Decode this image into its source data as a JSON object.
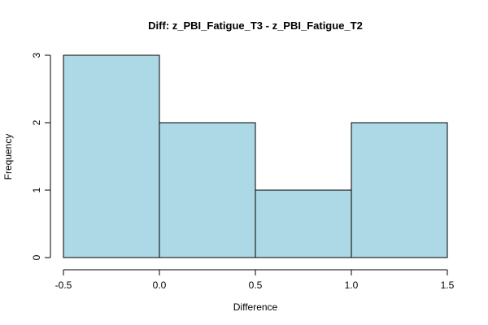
{
  "chart_data": {
    "type": "bar",
    "title": "Diff: z_PBI_Fatigue_T3 - z_PBI_Fatigue_T2",
    "xlabel": "Difference",
    "ylabel": "Frequency",
    "bins": [
      {
        "x0": -0.5,
        "x1": 0.0,
        "count": 3
      },
      {
        "x0": 0.0,
        "x1": 0.5,
        "count": 2
      },
      {
        "x0": 0.5,
        "x1": 1.0,
        "count": 1
      },
      {
        "x0": 1.0,
        "x1": 1.5,
        "count": 2
      }
    ],
    "xlim": [
      -0.5,
      1.5
    ],
    "ylim": [
      0,
      3
    ],
    "x_ticks": [
      -0.5,
      0.0,
      0.5,
      1.0,
      1.5
    ],
    "x_tick_labels": [
      "-0.5",
      "0.0",
      "0.5",
      "1.0",
      "1.5"
    ],
    "y_ticks": [
      0,
      1,
      2,
      3
    ],
    "y_tick_labels": [
      "0",
      "1",
      "2",
      "3"
    ],
    "bar_color": "#add8e6",
    "bar_edge_color": "#000000",
    "grid": false,
    "legend": "none"
  }
}
